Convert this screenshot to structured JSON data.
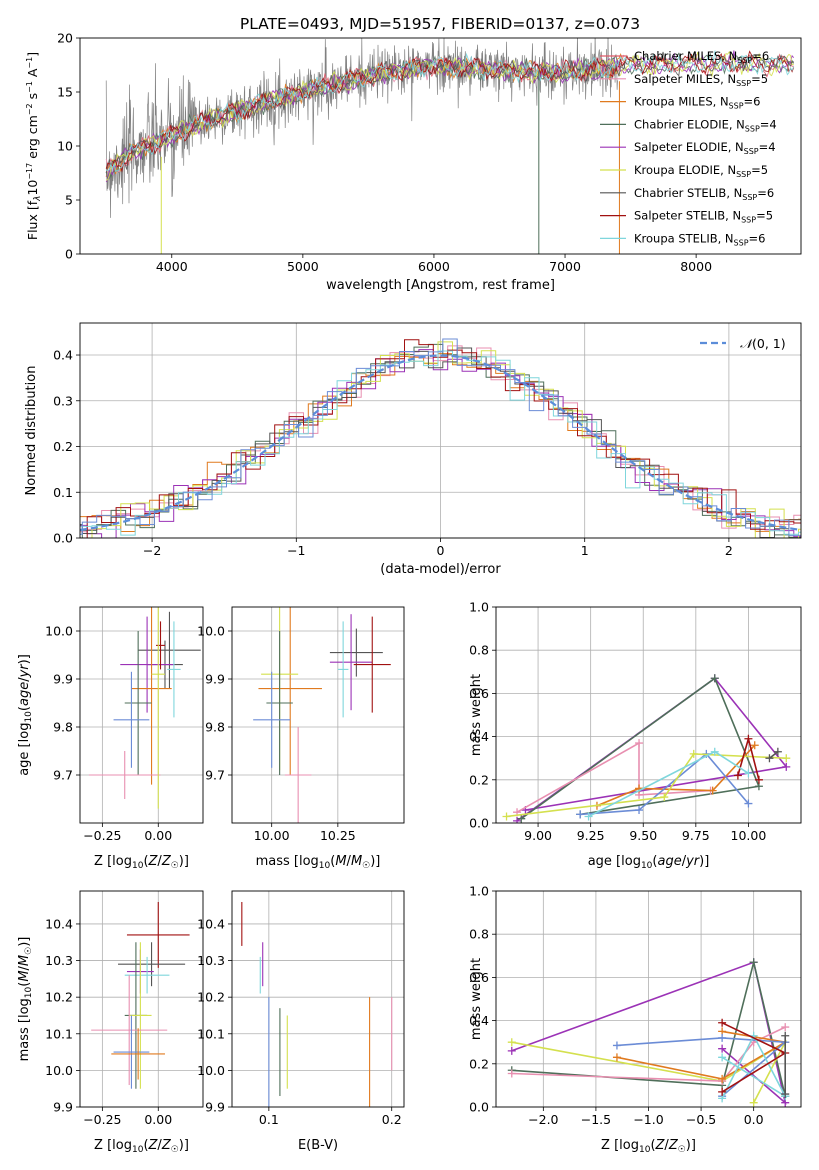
{
  "title": "PLATE=0493, MJD=51957, FIBERID=0137, z=0.073",
  "colors": [
    "#e06c75",
    "#e88fb0",
    "#e07a1f",
    "#4f6f5a",
    "#9b32b6",
    "#d4e04e",
    "#555555",
    "#a11111",
    "#7fd6dc",
    "#6b8cd6"
  ],
  "legend_entries": [
    {
      "name": "Chabrier MILES, N",
      "sub": "SSP",
      "suffix": "=6",
      "color": "#e05a6a"
    },
    {
      "name": "Salpeter MILES, N",
      "sub": "SSP",
      "suffix": "=5",
      "color": "#e88fb0"
    },
    {
      "name": "Kroupa MILES, N",
      "sub": "SSP",
      "suffix": "=6",
      "color": "#e07a1f"
    },
    {
      "name": "Chabrier ELODIE, N",
      "sub": "SSP",
      "suffix": "=4",
      "color": "#4f6f5a"
    },
    {
      "name": "Salpeter ELODIE, N",
      "sub": "SSP",
      "suffix": "=4",
      "color": "#9b32b6"
    },
    {
      "name": "Kroupa ELODIE, N",
      "sub": "SSP",
      "suffix": "=5",
      "color": "#d4e04e"
    },
    {
      "name": "Chabrier STELIB, N",
      "sub": "SSP",
      "suffix": "=6",
      "color": "#555555"
    },
    {
      "name": "Salpeter STELIB, N",
      "sub": "SSP",
      "suffix": "=5",
      "color": "#a11111"
    },
    {
      "name": "Kroupa STELIB, N",
      "sub": "SSP",
      "suffix": "=6",
      "color": "#7fd6dc"
    }
  ],
  "chart_data": [
    {
      "type": "line",
      "xlabel": "wavelength [Angstrom, rest frame]",
      "ylabel": "Flux [f",
      "ylabel_full": "Flux [fλ10^-17 erg cm^-2 s^-1 A^-1]",
      "xlim": [
        3300,
        8800
      ],
      "ylim": [
        0,
        20
      ],
      "xticks": [
        4000,
        5000,
        6000,
        7000,
        8000
      ],
      "yticks": [
        0,
        5,
        10,
        15,
        20
      ],
      "spectrum_anchors": {
        "x": [
          3500,
          3700,
          4000,
          4300,
          4700,
          5000,
          5500,
          6000,
          6500,
          7000,
          7500,
          8000,
          8500
        ],
        "y": [
          7.5,
          9.5,
          11,
          12.5,
          14,
          15,
          16.5,
          17.5,
          17,
          16.8,
          17.5,
          17.6,
          17.6
        ]
      },
      "grid": false
    },
    {
      "type": "step",
      "xlabel": "(data-model)/error",
      "ylabel": "Normed distribution",
      "xlim": [
        -2.5,
        2.5
      ],
      "ylim": [
        0,
        0.47
      ],
      "xticks": [
        -2,
        -1,
        0,
        1,
        2
      ],
      "xtick_labels": [
        "−2",
        "−1",
        "0",
        "1",
        "2"
      ],
      "yticks": [
        0,
        0.1,
        0.2,
        0.3,
        0.4
      ],
      "ytick_labels": [
        "0.0",
        "0.1",
        "0.2",
        "0.3",
        "0.4"
      ],
      "legend": "N(0,1)",
      "legend_placement": "top-right",
      "gaussian_reference": {
        "mean": 0,
        "sigma": 1
      },
      "grid": true
    },
    {
      "type": "errorbar",
      "xlabel": "Z [log10(Z/Z☉)]",
      "ylabel": "age  [log10(age/yr)]",
      "xlim": [
        -0.35,
        0.2
      ],
      "ylim": [
        9.6,
        10.05
      ],
      "xticks": [
        -0.25,
        0.0
      ],
      "xtick_labels": [
        "−0.25",
        "0.00"
      ],
      "yticks": [
        9.7,
        9.8,
        9.9,
        10.0
      ],
      "ytick_labels": [
        "9.7",
        "9.8",
        "9.9",
        "10.0"
      ],
      "points": [
        {
          "x": 0.03,
          "y": 9.93,
          "xerr": 0.08,
          "yerr": 0.05,
          "color": "#555555"
        },
        {
          "x": 0.05,
          "y": 9.96,
          "xerr": 0.14,
          "yerr": 0.08,
          "color": "#555555"
        },
        {
          "x": -0.05,
          "y": 9.93,
          "xerr": 0.12,
          "yerr": 0.1,
          "color": "#9b32b6"
        },
        {
          "x": -0.03,
          "y": 9.88,
          "xerr": 0.09,
          "yerr": 0.2,
          "color": "#e07a1f"
        },
        {
          "x": -0.09,
          "y": 9.85,
          "xerr": 0.06,
          "yerr": 0.15,
          "color": "#4f6f5a"
        },
        {
          "x": -0.12,
          "y": 9.815,
          "xerr": 0.08,
          "yerr": 0.1,
          "color": "#6b8cd6"
        },
        {
          "x": -0.15,
          "y": 9.7,
          "xerr": 0.16,
          "yerr": 0.05,
          "color": "#e88fb0"
        },
        {
          "x": 0.01,
          "y": 9.97,
          "xerr": 0.02,
          "yerr": 0.05,
          "color": "#a11111"
        },
        {
          "x": 0.07,
          "y": 9.92,
          "xerr": 0.03,
          "yerr": 0.1,
          "color": "#7fd6dc"
        },
        {
          "x": 0.0,
          "y": 9.91,
          "xerr": 0.03,
          "yerr": 0.28,
          "color": "#d4e04e"
        }
      ],
      "grid": true
    },
    {
      "type": "errorbar",
      "xlabel": "mass [log10(M/M☉)]",
      "ylabel": "",
      "xlim": [
        9.85,
        10.5
      ],
      "ylim": [
        9.6,
        10.05
      ],
      "xticks": [
        10.0,
        10.25
      ],
      "xtick_labels": [
        "10.00",
        "10.25"
      ],
      "yticks": [
        9.7,
        9.8,
        9.9,
        10.0
      ],
      "ytick_labels": [
        "9.7",
        "9.8",
        "9.9",
        "10.0"
      ],
      "points": [
        {
          "x": 10.07,
          "y": 9.88,
          "xerr": 0.12,
          "yerr": 0.18,
          "color": "#e07a1f"
        },
        {
          "x": 10.03,
          "y": 9.91,
          "xerr": 0.07,
          "yerr": 0.2,
          "color": "#d4e04e"
        },
        {
          "x": 10.03,
          "y": 9.85,
          "xerr": 0.05,
          "yerr": 0.15,
          "color": "#4f6f5a"
        },
        {
          "x": 10.0,
          "y": 9.815,
          "xerr": 0.07,
          "yerr": 0.1,
          "color": "#6b8cd6"
        },
        {
          "x": 10.1,
          "y": 9.7,
          "xerr": 0.05,
          "yerr": 0.1,
          "color": "#e88fb0"
        },
        {
          "x": 10.32,
          "y": 9.955,
          "xerr": 0.1,
          "yerr": 0.05,
          "color": "#555555"
        },
        {
          "x": 10.3,
          "y": 9.935,
          "xerr": 0.08,
          "yerr": 0.1,
          "color": "#9b32b6"
        },
        {
          "x": 10.38,
          "y": 9.93,
          "xerr": 0.07,
          "yerr": 0.1,
          "color": "#a11111"
        },
        {
          "x": 10.27,
          "y": 9.92,
          "xerr": 0.02,
          "yerr": 0.1,
          "color": "#7fd6dc"
        }
      ],
      "grid": true
    },
    {
      "type": "line",
      "xlabel": "age  [log10(age/yr)]",
      "ylabel": "mass weight",
      "xlim": [
        8.8,
        10.25
      ],
      "ylim": [
        0,
        1
      ],
      "xticks": [
        9.0,
        9.25,
        9.5,
        9.75,
        10.0
      ],
      "xtick_labels": [
        "9.00",
        "9.25",
        "9.50",
        "9.75",
        "10.00"
      ],
      "yticks": [
        0,
        0.2,
        0.4,
        0.6,
        0.8,
        1.0
      ],
      "ytick_labels": [
        "0.0",
        "0.2",
        "0.4",
        "0.6",
        "0.8",
        "1.0"
      ],
      "series": [
        {
          "color": "#9b32b6",
          "x": [
            8.9,
            9.84,
            10.18,
            8.94
          ],
          "y": [
            0.01,
            0.67,
            0.26,
            0.06
          ]
        },
        {
          "color": "#4f6f5a",
          "x": [
            8.92,
            9.84,
            10.05,
            9.2
          ],
          "y": [
            0.02,
            0.67,
            0.17,
            0.04
          ]
        },
        {
          "color": "#e88fb0",
          "x": [
            8.9,
            9.48,
            9.48,
            9.82
          ],
          "y": [
            0.05,
            0.37,
            0.13,
            0.15
          ]
        },
        {
          "color": "#e07a1f",
          "x": [
            9.28,
            9.48,
            9.83,
            10.03
          ],
          "y": [
            0.08,
            0.16,
            0.15,
            0.36
          ]
        },
        {
          "color": "#6b8cd6",
          "x": [
            9.2,
            9.48,
            9.8,
            10.0
          ],
          "y": [
            0.04,
            0.06,
            0.32,
            0.09
          ]
        },
        {
          "color": "#d4e04e",
          "x": [
            8.85,
            9.6,
            9.74,
            10.18
          ],
          "y": [
            0.03,
            0.12,
            0.32,
            0.3
          ]
        },
        {
          "color": "#a11111",
          "x": [
            9.95,
            10.0,
            10.05
          ],
          "y": [
            0.22,
            0.39,
            0.2
          ]
        },
        {
          "color": "#555555",
          "x": [
            10.1,
            10.14
          ],
          "y": [
            0.3,
            0.33
          ]
        },
        {
          "color": "#7fd6dc",
          "x": [
            9.24,
            9.84,
            10.0
          ],
          "y": [
            0.03,
            0.33,
            0.23
          ]
        }
      ],
      "grid": true
    },
    {
      "type": "errorbar",
      "xlabel": "Z [log10(Z/Z☉)]",
      "ylabel": "mass [log10(M/M☉)]",
      "xlim": [
        -0.35,
        0.2
      ],
      "ylim": [
        9.9,
        10.49
      ],
      "xticks": [
        -0.25,
        0.0
      ],
      "xtick_labels": [
        "−0.25",
        "0.00"
      ],
      "yticks": [
        9.9,
        10.0,
        10.1,
        10.2,
        10.3,
        10.4
      ],
      "ytick_labels": [
        "9.9",
        "10.0",
        "10.1",
        "10.2",
        "10.3",
        "10.4"
      ],
      "points": [
        {
          "x": 0.0,
          "y": 10.37,
          "xerr": 0.14,
          "yerr": 0.09,
          "color": "#a11111"
        },
        {
          "x": -0.03,
          "y": 10.29,
          "xerr": 0.15,
          "yerr": 0.06,
          "color": "#555555"
        },
        {
          "x": -0.08,
          "y": 10.27,
          "xerr": 0.06,
          "yerr": 0.06,
          "color": "#9b32b6"
        },
        {
          "x": -0.05,
          "y": 10.26,
          "xerr": 0.1,
          "yerr": 0.05,
          "color": "#7fd6dc"
        },
        {
          "x": -0.1,
          "y": 10.15,
          "xerr": 0.05,
          "yerr": 0.2,
          "color": "#4f6f5a"
        },
        {
          "x": -0.08,
          "y": 10.15,
          "xerr": 0.05,
          "yerr": 0.2,
          "color": "#d4e04e"
        },
        {
          "x": -0.13,
          "y": 10.11,
          "xerr": 0.17,
          "yerr": 0.15,
          "color": "#e88fb0"
        },
        {
          "x": -0.12,
          "y": 10.05,
          "xerr": 0.08,
          "yerr": 0.1,
          "color": "#6b8cd6"
        },
        {
          "x": -0.09,
          "y": 10.045,
          "xerr": 0.12,
          "yerr": 0.07,
          "color": "#e07a1f"
        }
      ],
      "grid": true
    },
    {
      "type": "errorbar",
      "xlabel": "E(B-V)",
      "ylabel": "",
      "xlim": [
        0.07,
        0.21
      ],
      "ylim": [
        9.9,
        10.49
      ],
      "xticks": [
        0.1,
        0.2
      ],
      "xtick_labels": [
        "0.1",
        "0.2"
      ],
      "yticks": [
        9.9,
        10.0,
        10.1,
        10.2,
        10.3,
        10.4
      ],
      "ytick_labels": [
        "9.9",
        "10.0",
        "10.1",
        "10.2",
        "10.3",
        "10.4"
      ],
      "points": [
        {
          "x": 0.078,
          "y": 10.4,
          "xerr": 0,
          "yerr": 0.06,
          "color": "#a11111"
        },
        {
          "x": 0.095,
          "y": 10.29,
          "xerr": 0,
          "yerr": 0.06,
          "color": "#9b32b6"
        },
        {
          "x": 0.093,
          "y": 10.26,
          "xerr": 0,
          "yerr": 0.05,
          "color": "#7fd6dc"
        },
        {
          "x": 0.1,
          "y": 10.0,
          "xerr": 0,
          "yerr": 0.2,
          "color": "#6b8cd6"
        },
        {
          "x": 0.109,
          "y": 10.05,
          "xerr": 0,
          "yerr": 0.12,
          "color": "#4f6f5a"
        },
        {
          "x": 0.115,
          "y": 10.05,
          "xerr": 0,
          "yerr": 0.1,
          "color": "#d4e04e"
        },
        {
          "x": 0.182,
          "y": 10.02,
          "xerr": 0,
          "yerr": 0.18,
          "color": "#e07a1f"
        },
        {
          "x": 0.2,
          "y": 10.1,
          "xerr": 0,
          "yerr": 0.1,
          "color": "#e88fb0"
        }
      ],
      "grid": true
    },
    {
      "type": "line",
      "xlabel": "Z [log10(Z/Z☉)]",
      "ylabel": "mass weight",
      "xlim": [
        -2.45,
        0.45
      ],
      "ylim": [
        0,
        1
      ],
      "xticks": [
        -2.0,
        -1.5,
        -1.0,
        -0.5,
        0.0
      ],
      "xtick_labels": [
        "−2.0",
        "−1.5",
        "−1.0",
        "−0.5",
        "0.0"
      ],
      "yticks": [
        0,
        0.2,
        0.4,
        0.6,
        0.8,
        1.0
      ],
      "ytick_labels": [
        "0.0",
        "0.2",
        "0.4",
        "0.6",
        "0.8",
        "1.0"
      ],
      "series": [
        {
          "color": "#9b32b6",
          "x": [
            -2.3,
            0.0,
            0.3,
            -0.3
          ],
          "y": [
            0.26,
            0.67,
            0.02,
            0.27
          ]
        },
        {
          "color": "#4f6f5a",
          "x": [
            -2.3,
            -0.3,
            0.0,
            0.3
          ],
          "y": [
            0.17,
            0.1,
            0.67,
            0.05
          ]
        },
        {
          "color": "#d4e04e",
          "x": [
            -2.3,
            -0.3,
            0.3,
            0.0
          ],
          "y": [
            0.3,
            0.12,
            0.3,
            0.02
          ]
        },
        {
          "color": "#e88fb0",
          "x": [
            -2.3,
            -0.3,
            0.0,
            0.3
          ],
          "y": [
            0.155,
            0.12,
            0.3,
            0.37
          ]
        },
        {
          "color": "#e07a1f",
          "x": [
            -1.3,
            -0.3,
            0.3,
            -0.3
          ],
          "y": [
            0.23,
            0.13,
            0.3,
            0.35
          ]
        },
        {
          "color": "#6b8cd6",
          "x": [
            -1.3,
            -0.3,
            0.3,
            -0.3
          ],
          "y": [
            0.285,
            0.32,
            0.3,
            0.05
          ]
        },
        {
          "color": "#7fd6dc",
          "x": [
            -0.3,
            0.0,
            0.3,
            -0.3
          ],
          "y": [
            0.04,
            0.33,
            0.05,
            0.23
          ]
        },
        {
          "color": "#a11111",
          "x": [
            -0.3,
            0.3,
            -0.3
          ],
          "y": [
            0.39,
            0.25,
            0.07
          ]
        },
        {
          "color": "#555555",
          "x": [
            0.3,
            0.3
          ],
          "y": [
            0.33,
            0.06
          ]
        }
      ],
      "grid": true
    }
  ]
}
